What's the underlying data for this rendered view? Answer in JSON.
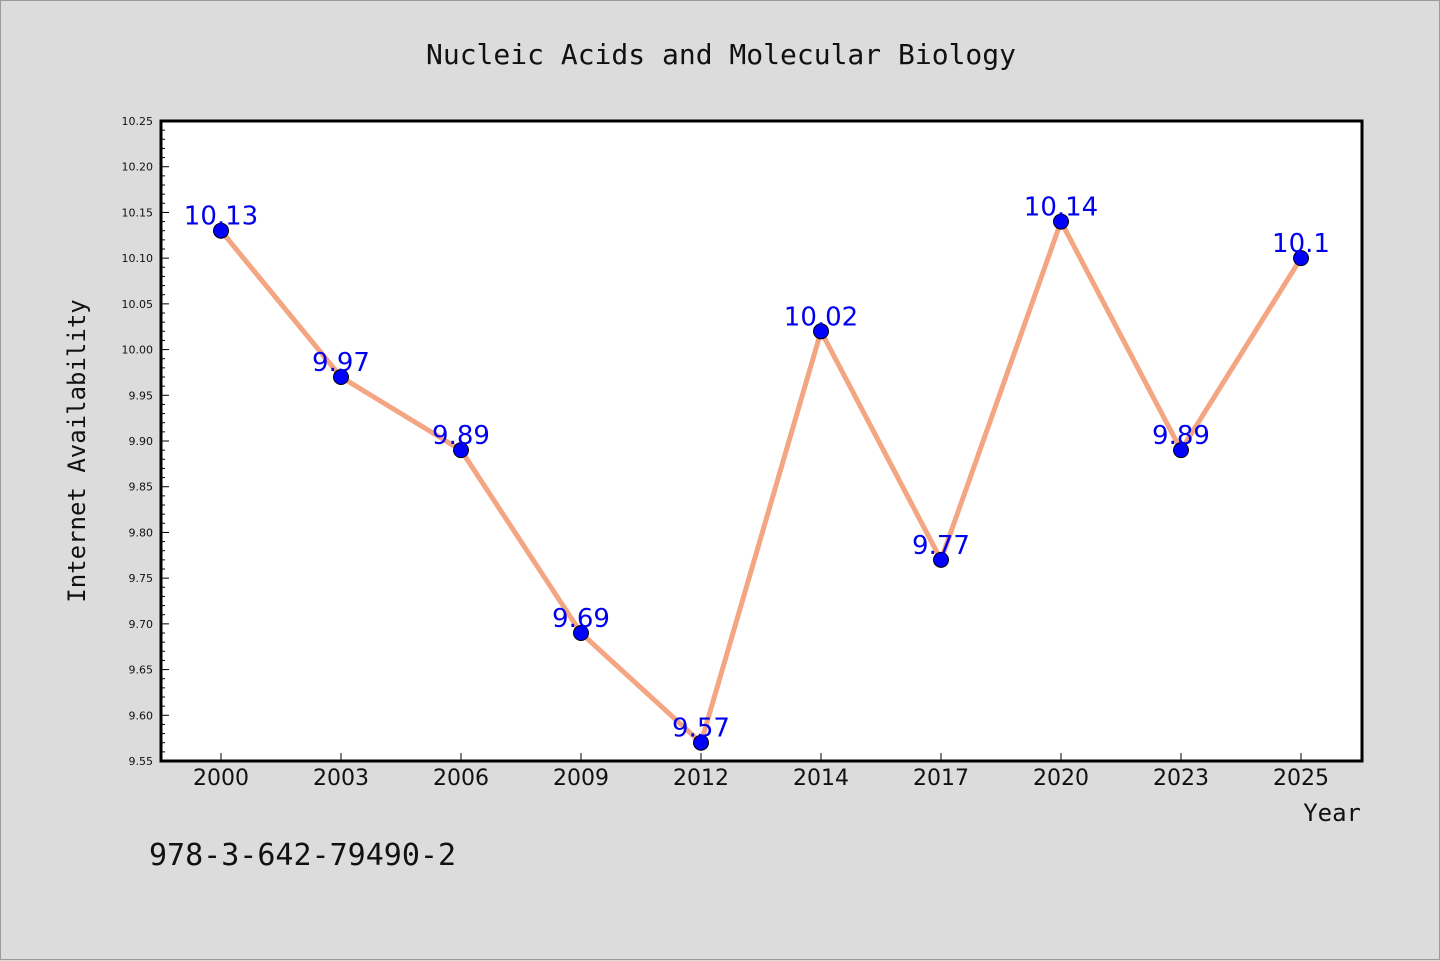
{
  "chart_data": {
    "type": "line",
    "title": "Nucleic Acids and Molecular Biology",
    "xlabel": "Year",
    "ylabel": "Internet Availability",
    "categories": [
      "2000",
      "2003",
      "2006",
      "2009",
      "2012",
      "2014",
      "2017",
      "2020",
      "2023",
      "2025"
    ],
    "series": [
      {
        "values": [
          10.13,
          9.97,
          9.89,
          9.69,
          9.57,
          10.02,
          9.77,
          10.14,
          9.89,
          10.1
        ],
        "labels": [
          "10.13",
          "9.97",
          "9.89",
          "9.69",
          "9.57",
          "10.02",
          "9.77",
          "10.14",
          "9.89",
          "10.1"
        ],
        "line_color": "#f4a582",
        "marker_color": "#0000ff",
        "label_color": "#0000ee"
      }
    ],
    "ylim": [
      9.55,
      10.25
    ],
    "yticks": [
      "9.55",
      "9.60",
      "9.65",
      "9.70",
      "9.75",
      "9.80",
      "9.85",
      "9.90",
      "9.95",
      "10.00",
      "10.05",
      "10.10",
      "10.15",
      "10.20",
      "10.25"
    ],
    "grid": false,
    "legend": "none"
  },
  "annotation": {
    "isbn": "978-3-642-79490-2"
  },
  "colors": {
    "background": "#dcdcdc",
    "plot_background": "#ffffff",
    "axis": "#000000"
  }
}
